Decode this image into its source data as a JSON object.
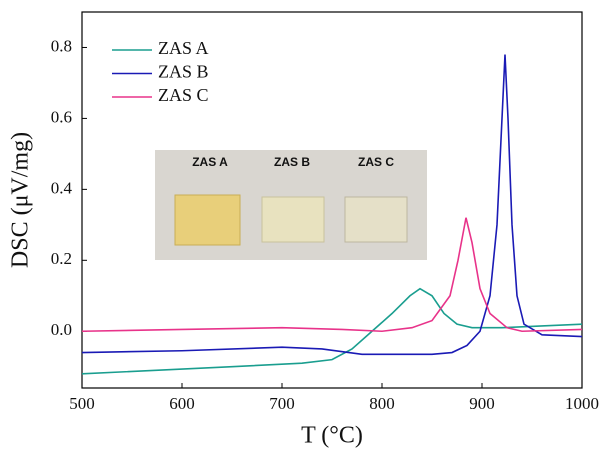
{
  "chart_data": {
    "type": "line",
    "x_label": "T (°C)",
    "y_label": "DSC (μV/mg)",
    "xlim": [
      500,
      1000
    ],
    "xticks": [
      500,
      600,
      700,
      800,
      900,
      1000
    ],
    "ylim": [
      -0.16,
      0.9
    ],
    "yticks": [
      {
        "value": 0,
        "label": "0.0"
      },
      0.2,
      0.4,
      0.6,
      0.8
    ],
    "legend": "upper left",
    "inset_labels": [
      "ZAS A",
      "ZAS B",
      "ZAS C"
    ],
    "series": [
      {
        "name": "ZAS A",
        "color": "#1a9e8f",
        "x": [
          500,
          650,
          720,
          750,
          770,
          790,
          810,
          828,
          838,
          850,
          862,
          875,
          890,
          920,
          960,
          1000
        ],
        "values": [
          -0.12,
          -0.1,
          -0.09,
          -0.08,
          -0.05,
          0.0,
          0.05,
          0.1,
          0.12,
          0.1,
          0.05,
          0.02,
          0.01,
          0.01,
          0.015,
          0.02
        ]
      },
      {
        "name": "ZAS B",
        "color": "#1a1ab5",
        "x": [
          500,
          600,
          700,
          740,
          780,
          850,
          870,
          885,
          898,
          908,
          915,
          920,
          923,
          926,
          930,
          935,
          942,
          960,
          1000
        ],
        "values": [
          -0.06,
          -0.055,
          -0.045,
          -0.05,
          -0.065,
          -0.065,
          -0.06,
          -0.04,
          0.0,
          0.1,
          0.3,
          0.6,
          0.78,
          0.6,
          0.3,
          0.1,
          0.02,
          -0.01,
          -0.015
        ]
      },
      {
        "name": "ZAS C",
        "color": "#e8338a",
        "x": [
          500,
          600,
          700,
          760,
          800,
          830,
          850,
          868,
          876,
          884,
          890,
          898,
          908,
          925,
          940,
          1000
        ],
        "values": [
          0.0,
          0.005,
          0.01,
          0.005,
          0.0,
          0.01,
          0.03,
          0.1,
          0.2,
          0.32,
          0.25,
          0.12,
          0.05,
          0.01,
          0.0,
          0.005
        ]
      }
    ]
  }
}
